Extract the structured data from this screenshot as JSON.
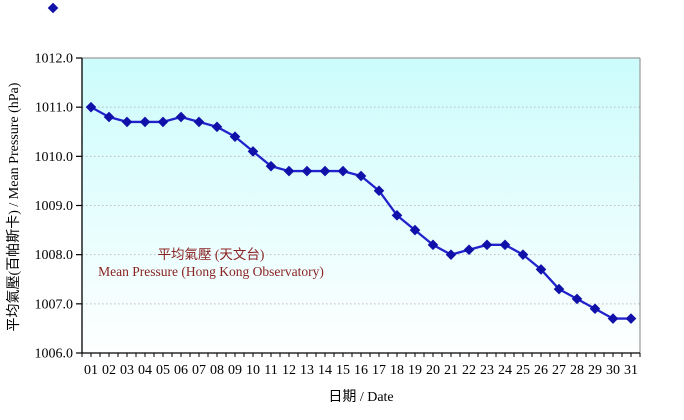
{
  "chart_data": {
    "type": "line",
    "title": "",
    "xlabel": "日期 / Date",
    "ylabel": "平均氣壓(百帕斯卡) / Mean Pressure (hPa)",
    "categories": [
      "01",
      "02",
      "03",
      "04",
      "05",
      "06",
      "07",
      "08",
      "09",
      "10",
      "11",
      "12",
      "13",
      "14",
      "15",
      "16",
      "17",
      "18",
      "19",
      "20",
      "21",
      "22",
      "23",
      "24",
      "25",
      "26",
      "27",
      "28",
      "29",
      "30",
      "31"
    ],
    "series": [
      {
        "name": "平均氣壓 (天文台) / Mean Pressure (Hong Kong Observatory)",
        "values": [
          1011.0,
          1010.8,
          1010.7,
          1010.7,
          1010.7,
          1010.8,
          1010.7,
          1010.6,
          1010.4,
          1010.1,
          1009.8,
          1009.7,
          1009.7,
          1009.7,
          1009.7,
          1009.6,
          1009.3,
          1008.8,
          1008.5,
          1008.2,
          1008.0,
          1008.1,
          1008.2,
          1008.2,
          1008.0,
          1007.7,
          1007.3,
          1007.1,
          1006.9,
          1006.7,
          1006.7
        ]
      }
    ],
    "ylim": [
      1006.0,
      1012.0
    ],
    "ytick_step": 1.0,
    "ytick_labels": [
      "1006.0",
      "1007.0",
      "1008.0",
      "1009.0",
      "1010.0",
      "1011.0",
      "1012.0"
    ],
    "grid": "horizontal-dashed",
    "legend_position": "inside-left-middle",
    "marker": "diamond"
  },
  "legend": {
    "line1": "平均氣壓 (天文台)",
    "line2": "Mean Pressure (Hong Kong Observatory)"
  },
  "axes": {
    "x_title": "日期 / Date",
    "y_title": "平均氣壓(百帕斯卡) / Mean Pressure (hPa)"
  },
  "colors": {
    "line": "#2222CC",
    "marker": "#1111AA",
    "legend_text": "#8B2222",
    "plot_bg_top": "#CCFCFC",
    "plot_bg_bottom": "#FEFFFF",
    "grid": "#BDBDBD",
    "axis": "#000000",
    "border": "#9A9A9A",
    "tick_label": "#000000"
  }
}
